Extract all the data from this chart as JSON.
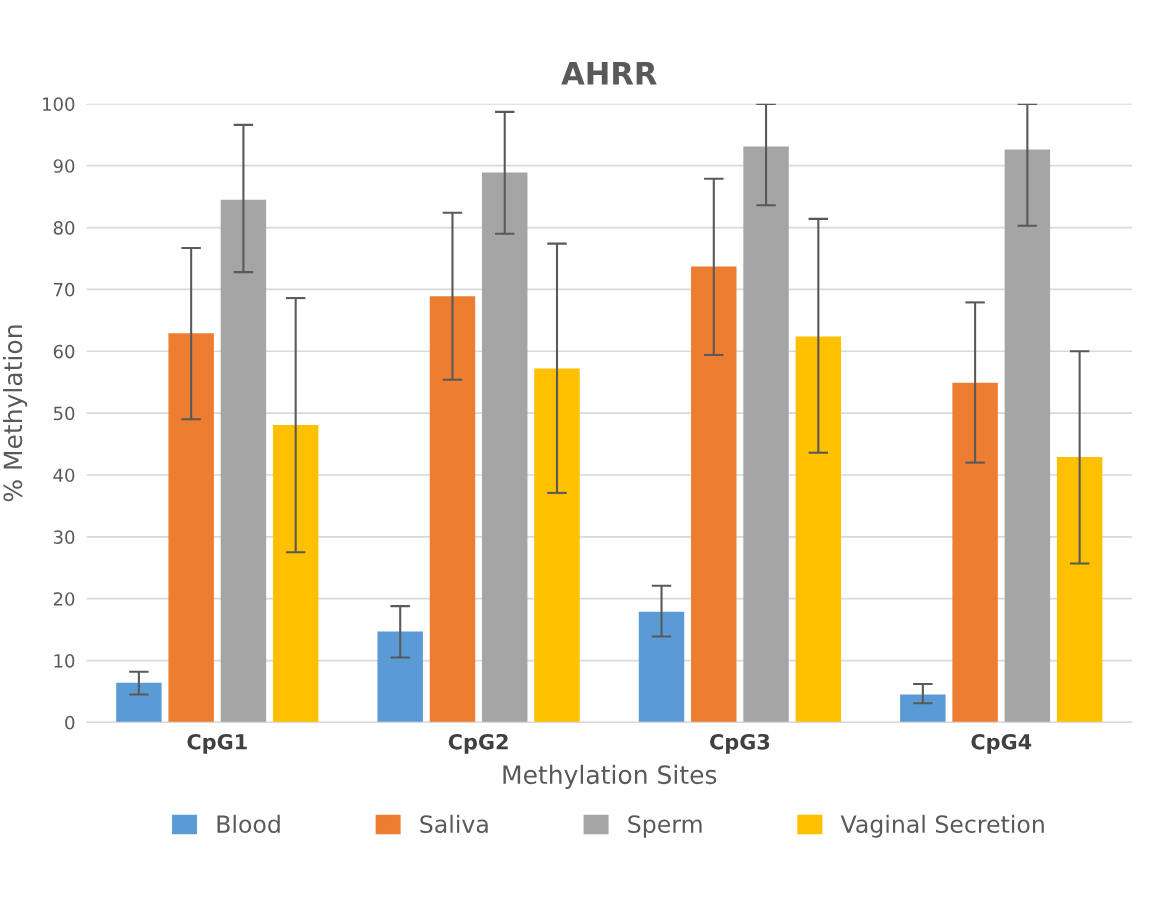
{
  "chart_data": {
    "type": "bar",
    "title": "AHRR",
    "xlabel": "Methylation Sites",
    "ylabel": "% Methylation",
    "categories": [
      "CpG1",
      "CpG2",
      "CpG3",
      "CpG4"
    ],
    "series": [
      {
        "name": "Blood",
        "color": "#5b9bd5",
        "values": [
          6.4,
          14.7,
          17.9,
          4.5
        ],
        "errors": [
          [
            4.5,
            8.2
          ],
          [
            10.5,
            18.8
          ],
          [
            13.9,
            22.1
          ],
          [
            3.1,
            6.2
          ]
        ]
      },
      {
        "name": "Saliva",
        "color": "#ed7d31",
        "values": [
          62.9,
          68.9,
          73.7,
          54.9
        ],
        "errors": [
          [
            49.0,
            76.7
          ],
          [
            55.4,
            82.4
          ],
          [
            59.4,
            87.9
          ],
          [
            42.0,
            67.9
          ]
        ]
      },
      {
        "name": "Sperm",
        "color": "#a5a5a5",
        "values": [
          84.5,
          88.9,
          93.1,
          92.6
        ],
        "errors": [
          [
            72.8,
            96.6
          ],
          [
            79.0,
            98.7
          ],
          [
            83.6,
            100
          ],
          [
            80.3,
            100
          ]
        ]
      },
      {
        "name": "Vaginal Secretion",
        "color": "#ffc000",
        "values": [
          48.1,
          57.2,
          62.4,
          42.9
        ],
        "errors": [
          [
            27.5,
            68.6
          ],
          [
            37.1,
            77.4
          ],
          [
            43.6,
            81.4
          ],
          [
            25.7,
            60.0
          ]
        ]
      }
    ],
    "ylim": [
      0,
      100
    ],
    "yticks": [
      0,
      10,
      20,
      30,
      40,
      50,
      60,
      70,
      80,
      90,
      100
    ],
    "grid": "y",
    "legend": "bottom"
  }
}
